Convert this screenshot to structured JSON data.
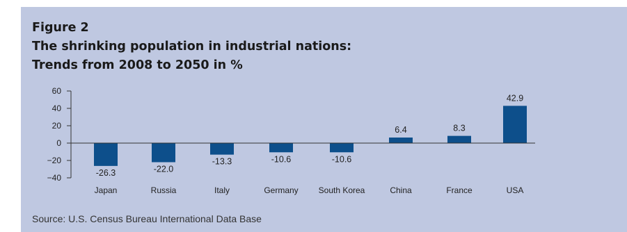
{
  "figure": {
    "label": "Figure 2",
    "title_line1": "The shrinking population in industrial nations:",
    "title_line2": "Trends from 2008 to 2050 in %",
    "source": "Source: U.S. Census Bureau International Data Base"
  },
  "chart_data": {
    "type": "bar",
    "categories": [
      "Japan",
      "Russia",
      "Italy",
      "Germany",
      "South Korea",
      "China",
      "France",
      "USA"
    ],
    "values": [
      -26.3,
      -22.0,
      -13.3,
      -10.6,
      -10.6,
      6.4,
      8.3,
      42.9
    ],
    "value_labels": [
      "-26.3",
      "-22.0",
      "-13.3",
      "-10.6",
      "-10.6",
      "6.4",
      "8.3",
      "42.9"
    ],
    "yticks": [
      60,
      40,
      20,
      0,
      -20,
      -40
    ],
    "ytick_labels": [
      "60",
      "40",
      "20",
      "0",
      "−20",
      "−40"
    ],
    "ylim": [
      -40,
      60
    ],
    "grid": false,
    "bar_color": "#0d4f8b"
  }
}
